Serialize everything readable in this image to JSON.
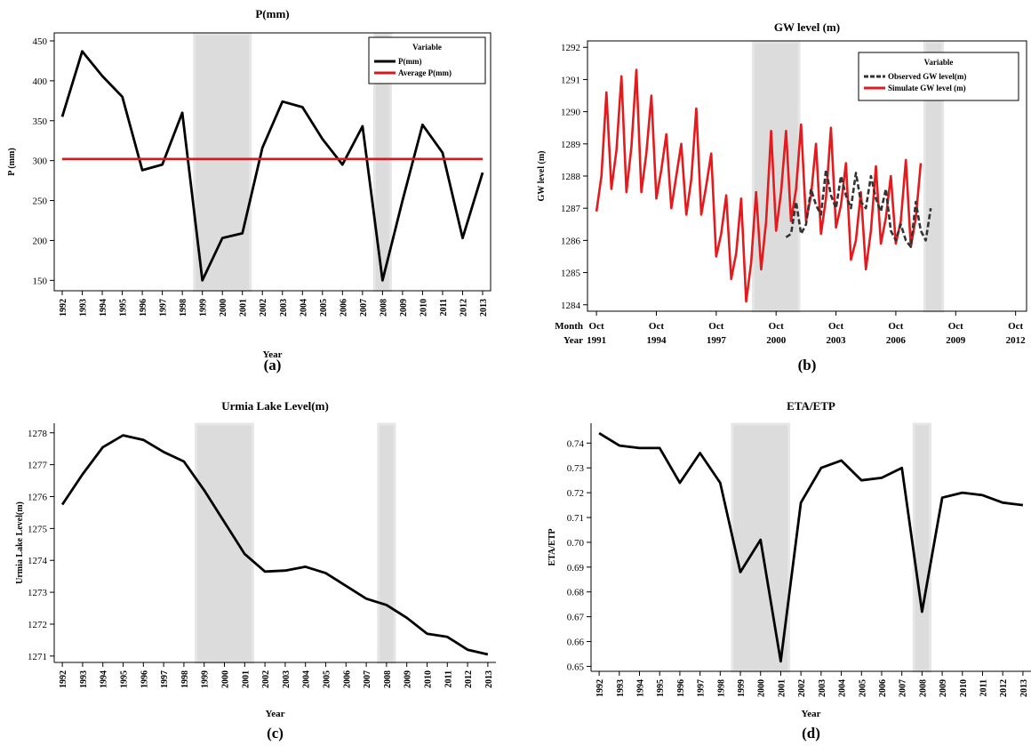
{
  "panels": [
    {
      "id": "a",
      "panel_label": "(a)",
      "chart_data": {
        "type": "line",
        "title": "P(mm)",
        "xlabel": "Year",
        "ylabel": "P (mm)",
        "x_tick_labels": [
          "1992",
          "1993",
          "1994",
          "1995",
          "1996",
          "1997",
          "1998",
          "1999",
          "2000",
          "2001",
          "2002",
          "2003",
          "2004",
          "2005",
          "2006",
          "2007",
          "2008",
          "2009",
          "2010",
          "2011",
          "2012",
          "2013"
        ],
        "ylim": [
          137,
          460
        ],
        "y_ticks": [
          150,
          200,
          250,
          300,
          350,
          400,
          450
        ],
        "legend": {
          "title": "Variable",
          "placement": "top-right"
        },
        "series": [
          {
            "name": "P(mm)",
            "color": "#000000",
            "x": [
              1992,
              1993,
              1994,
              1995,
              1996,
              1997,
              1998,
              1999,
              2000,
              2001,
              2002,
              2003,
              2004,
              2005,
              2006,
              2007,
              2008,
              2009,
              2010,
              2011,
              2012,
              2013
            ],
            "values": [
              355,
              437,
              406,
              380,
              288,
              295,
              360,
              150,
              203,
              209,
              316,
              374,
              367,
              327,
              295,
              343,
              150,
              250,
              345,
              310,
              203,
              285
            ]
          },
          {
            "name": "Average P(mm)",
            "color": "#d7191c",
            "x": [
              1992,
              2013
            ],
            "values": [
              302,
              302
            ]
          }
        ],
        "shaded_periods": [
          [
            1998.6,
            2001.4
          ],
          [
            2007.6,
            2008.4
          ]
        ]
      }
    },
    {
      "id": "b",
      "panel_label": "(b)",
      "chart_data": {
        "type": "line",
        "title": "GW level (m)",
        "xlabel": "",
        "ylabel": "GW level (m)",
        "x_row_labels": [
          "Month",
          "Year"
        ],
        "x_tick_months": [
          "Oct",
          "Oct",
          "Oct",
          "Oct",
          "Oct",
          "Oct",
          "Oct",
          "Oct"
        ],
        "x_tick_years": [
          "1991",
          "1994",
          "1997",
          "2000",
          "2003",
          "2006",
          "2009",
          "2012"
        ],
        "ylim": [
          1283.8,
          1292.2
        ],
        "y_ticks": [
          1284,
          1285,
          1286,
          1287,
          1288,
          1289,
          1290,
          1291,
          1292
        ],
        "legend": {
          "title": "Variable",
          "placement": "top-right"
        },
        "series": [
          {
            "name": "Observed GW level(m)",
            "color": "#333333",
            "style": "dashed",
            "x_start": 2001.25,
            "step": 0.25,
            "values": [
              1286.1,
              1286.2,
              1287.2,
              1286.2,
              1286.5,
              1287.6,
              1287.1,
              1286.8,
              1288.2,
              1287.4,
              1287.0,
              1288.0,
              1287.4,
              1287.0,
              1288.1,
              1287.2,
              1287.0,
              1288.0,
              1287.3,
              1286.9,
              1287.6,
              1286.3,
              1286.0,
              1286.5,
              1286.0,
              1285.8,
              1287.2,
              1286.3,
              1286.0,
              1287.0
            ]
          },
          {
            "name": "Simulate GW level (m)",
            "color": "#e41a1c",
            "style": "solid",
            "x_start": 1991.75,
            "step": 0.25,
            "values": [
              1286.9,
              1288.0,
              1290.6,
              1287.6,
              1288.8,
              1291.1,
              1287.5,
              1288.9,
              1291.3,
              1287.5,
              1288.7,
              1290.5,
              1287.3,
              1288.2,
              1289.3,
              1287.0,
              1288.0,
              1289.0,
              1286.8,
              1287.9,
              1290.1,
              1286.8,
              1287.7,
              1288.7,
              1285.5,
              1286.2,
              1287.4,
              1284.8,
              1285.6,
              1287.3,
              1284.1,
              1285.3,
              1287.5,
              1285.1,
              1286.6,
              1289.4,
              1286.3,
              1287.5,
              1289.4,
              1286.6,
              1287.6,
              1289.6,
              1286.6,
              1287.4,
              1289.0,
              1286.2,
              1287.3,
              1289.5,
              1286.4,
              1287.1,
              1288.4,
              1285.4,
              1286.0,
              1287.5,
              1285.1,
              1286.3,
              1288.3,
              1285.9,
              1286.7,
              1288.0,
              1285.9,
              1286.6,
              1288.5,
              1285.8,
              1286.7,
              1288.4
            ]
          }
        ],
        "shaded_periods": [
          [
            1999.6,
            2001.9
          ],
          [
            2008.2,
            2009.1
          ]
        ]
      }
    },
    {
      "id": "c",
      "panel_label": "(c)",
      "chart_data": {
        "type": "line",
        "title": "Urmia Lake Level(m)",
        "xlabel": "Year",
        "ylabel": "Urmia Lake Level(m)",
        "x_tick_labels": [
          "1992",
          "1993",
          "1994",
          "1995",
          "1996",
          "1997",
          "1998",
          "1999",
          "2000",
          "2001",
          "2002",
          "2003",
          "2004",
          "2005",
          "2006",
          "2007",
          "2008",
          "2009",
          "2010",
          "2011",
          "2012",
          "2013"
        ],
        "ylim": [
          1270.8,
          1278.3
        ],
        "y_ticks": [
          1271,
          1272,
          1273,
          1274,
          1275,
          1276,
          1277,
          1278
        ],
        "series": [
          {
            "name": "",
            "color": "#000000",
            "x": [
              1992,
              1993,
              1994,
              1995,
              1996,
              1997,
              1998,
              1999,
              2000,
              2001,
              2002,
              2003,
              2004,
              2005,
              2006,
              2007,
              2008,
              2009,
              2010,
              2011,
              2012,
              2013
            ],
            "values": [
              1275.75,
              1276.7,
              1277.55,
              1277.92,
              1277.78,
              1277.4,
              1277.1,
              1276.2,
              1275.2,
              1274.2,
              1273.65,
              1273.68,
              1273.8,
              1273.6,
              1273.2,
              1272.8,
              1272.6,
              1272.2,
              1271.7,
              1271.6,
              1271.2,
              1271.05
            ]
          }
        ],
        "shaded_periods": [
          [
            1998.6,
            2001.4
          ],
          [
            2007.6,
            2008.4
          ]
        ]
      }
    },
    {
      "id": "d",
      "panel_label": "(d)",
      "chart_data": {
        "type": "line",
        "title": "ETA/ETP",
        "xlabel": "Year",
        "ylabel": "ETA/ETP",
        "x_tick_labels": [
          "1992",
          "1993",
          "1994",
          "1995",
          "1996",
          "1997",
          "1998",
          "1999",
          "2000",
          "2001",
          "2002",
          "2003",
          "2004",
          "2005",
          "2006",
          "2007",
          "2008",
          "2009",
          "2010",
          "2011",
          "2012",
          "2013"
        ],
        "ylim": [
          0.648,
          0.748
        ],
        "y_ticks": [
          0.65,
          0.66,
          0.67,
          0.68,
          0.69,
          0.7,
          0.71,
          0.72,
          0.73,
          0.74
        ],
        "y_tick_labels": [
          "0.65",
          "0.66",
          "0.67",
          "0.68",
          "0.69",
          "0.70",
          "0.71",
          "0.72",
          "0.73",
          "0.74"
        ],
        "series": [
          {
            "name": "",
            "color": "#000000",
            "x": [
              1992,
              1993,
              1994,
              1995,
              1996,
              1997,
              1998,
              1999,
              2000,
              2001,
              2002,
              2003,
              2004,
              2005,
              2006,
              2007,
              2008,
              2009,
              2010,
              2011,
              2012,
              2013
            ],
            "values": [
              0.744,
              0.739,
              0.738,
              0.738,
              0.724,
              0.736,
              0.724,
              0.688,
              0.701,
              0.652,
              0.716,
              0.73,
              0.733,
              0.725,
              0.726,
              0.73,
              0.672,
              0.718,
              0.72,
              0.719,
              0.716,
              0.715
            ]
          }
        ],
        "shaded_periods": [
          [
            1998.6,
            2001.4
          ],
          [
            2007.6,
            2008.4
          ]
        ]
      }
    }
  ]
}
